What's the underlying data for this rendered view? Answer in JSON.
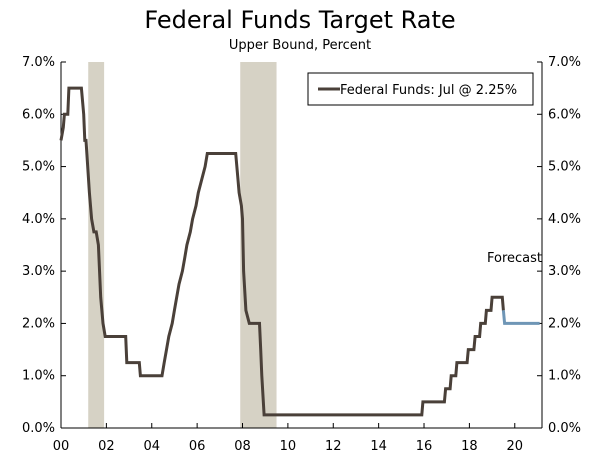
{
  "chart_data": {
    "type": "line",
    "title": "Federal Funds Target Rate",
    "subtitle": "Upper Bound, Percent",
    "ylim": [
      0,
      7
    ],
    "y_ticks": [
      "0.0%",
      "1.0%",
      "2.0%",
      "3.0%",
      "4.0%",
      "5.0%",
      "6.0%",
      "7.0%"
    ],
    "y_tick_values": [
      0,
      1,
      2,
      3,
      4,
      5,
      6,
      7
    ],
    "xlim": [
      2000,
      2021.2
    ],
    "x_ticks": [
      "00",
      "02",
      "04",
      "06",
      "08",
      "10",
      "12",
      "14",
      "16",
      "18",
      "20"
    ],
    "x_tick_values": [
      2000,
      2002,
      2004,
      2006,
      2008,
      2010,
      2012,
      2014,
      2016,
      2018,
      2020
    ],
    "legend": {
      "label": "Federal Funds: Jul @ 2.25%",
      "placement": "top-right"
    },
    "annotation": "Forecast",
    "colors": {
      "actual": "#4a4039",
      "forecast": "#6f96b6",
      "recession": "#d6d2c5",
      "axis": "#000000"
    },
    "recessions": [
      {
        "start": 2001.2,
        "end": 2001.9
      },
      {
        "start": 2007.9,
        "end": 2009.5
      }
    ],
    "series": [
      {
        "name": "Federal Funds",
        "points": [
          [
            2000.0,
            5.5
          ],
          [
            2000.1,
            5.75
          ],
          [
            2000.15,
            6.0
          ],
          [
            2000.3,
            6.0
          ],
          [
            2000.35,
            6.5
          ],
          [
            2000.9,
            6.5
          ],
          [
            2001.0,
            6.0
          ],
          [
            2001.05,
            5.5
          ],
          [
            2001.1,
            5.5
          ],
          [
            2001.25,
            4.5
          ],
          [
            2001.35,
            4.0
          ],
          [
            2001.45,
            3.75
          ],
          [
            2001.55,
            3.75
          ],
          [
            2001.65,
            3.5
          ],
          [
            2001.75,
            2.5
          ],
          [
            2001.85,
            2.0
          ],
          [
            2001.95,
            1.75
          ],
          [
            2002.85,
            1.75
          ],
          [
            2002.9,
            1.25
          ],
          [
            2003.45,
            1.25
          ],
          [
            2003.5,
            1.0
          ],
          [
            2004.45,
            1.0
          ],
          [
            2004.55,
            1.25
          ],
          [
            2004.65,
            1.5
          ],
          [
            2004.75,
            1.75
          ],
          [
            2004.9,
            2.0
          ],
          [
            2005.0,
            2.25
          ],
          [
            2005.1,
            2.5
          ],
          [
            2005.2,
            2.75
          ],
          [
            2005.35,
            3.0
          ],
          [
            2005.45,
            3.25
          ],
          [
            2005.55,
            3.5
          ],
          [
            2005.7,
            3.75
          ],
          [
            2005.8,
            4.0
          ],
          [
            2005.95,
            4.25
          ],
          [
            2006.05,
            4.5
          ],
          [
            2006.2,
            4.75
          ],
          [
            2006.35,
            5.0
          ],
          [
            2006.45,
            5.25
          ],
          [
            2007.7,
            5.25
          ],
          [
            2007.8,
            4.75
          ],
          [
            2007.85,
            4.5
          ],
          [
            2007.95,
            4.25
          ],
          [
            2008.0,
            4.0
          ],
          [
            2008.05,
            3.0
          ],
          [
            2008.15,
            2.25
          ],
          [
            2008.3,
            2.0
          ],
          [
            2008.75,
            2.0
          ],
          [
            2008.8,
            1.5
          ],
          [
            2008.85,
            1.0
          ],
          [
            2008.95,
            0.25
          ],
          [
            2015.9,
            0.25
          ],
          [
            2015.95,
            0.5
          ],
          [
            2016.9,
            0.5
          ],
          [
            2016.95,
            0.75
          ],
          [
            2017.15,
            0.75
          ],
          [
            2017.2,
            1.0
          ],
          [
            2017.4,
            1.0
          ],
          [
            2017.45,
            1.25
          ],
          [
            2017.9,
            1.25
          ],
          [
            2017.95,
            1.5
          ],
          [
            2018.2,
            1.5
          ],
          [
            2018.25,
            1.75
          ],
          [
            2018.45,
            1.75
          ],
          [
            2018.5,
            2.0
          ],
          [
            2018.7,
            2.0
          ],
          [
            2018.75,
            2.25
          ],
          [
            2018.95,
            2.25
          ],
          [
            2019.0,
            2.5
          ],
          [
            2019.45,
            2.5
          ],
          [
            2019.5,
            2.25
          ]
        ]
      },
      {
        "name": "Forecast",
        "points": [
          [
            2019.5,
            2.25
          ],
          [
            2019.55,
            2.0
          ],
          [
            2021.1,
            2.0
          ]
        ]
      }
    ]
  }
}
